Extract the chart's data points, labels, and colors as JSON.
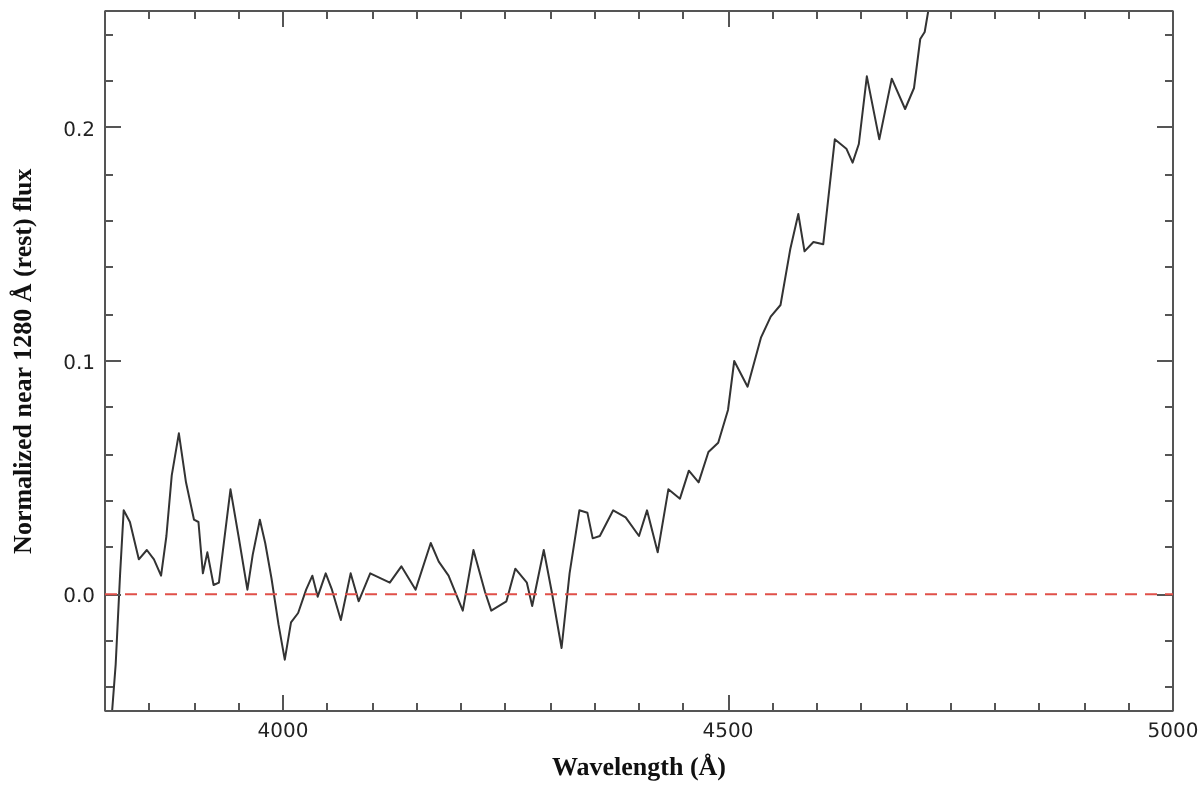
{
  "chart_data": {
    "type": "line",
    "xlabel": "Wavelength (Å)",
    "ylabel": "Normalized near 1280 Å (rest) flux",
    "xlim": [
      3800,
      5000
    ],
    "ylim": [
      -0.05,
      0.25
    ],
    "xticks": [
      4000,
      4500,
      5000
    ],
    "yticks": [
      {
        "value": 0,
        "label": "0.0"
      },
      {
        "value": 0.1,
        "label": "0.1"
      },
      {
        "value": 0.2,
        "label": "0.2"
      }
    ],
    "grid": false,
    "marker": "none",
    "line_style": "solid",
    "ref_lines": [
      {
        "axis": "y",
        "value": 0,
        "color": "#e0504a",
        "line_style": "dashed"
      }
    ],
    "series": [
      {
        "color": "#333333",
        "x": [
          3808,
          3812,
          3817,
          3821,
          3828,
          3838,
          3847,
          3855,
          3863,
          3869,
          3875,
          3883,
          3891,
          3900,
          3905,
          3910,
          3915,
          3922,
          3928,
          3941,
          3950,
          3960,
          3966,
          3974,
          3980,
          3987,
          3995,
          4002,
          4009,
          4017,
          4026,
          4033,
          4039,
          4048,
          4055,
          4065,
          4076,
          4085,
          4098,
          4120,
          4133,
          4149,
          4166,
          4175,
          4186,
          4202,
          4214,
          4227,
          4234,
          4251,
          4261,
          4274,
          4280,
          4293,
          4302,
          4313,
          4322,
          4333,
          4342,
          4348,
          4356,
          4371,
          4385,
          4400,
          4409,
          4421,
          4433,
          4446,
          4456,
          4467,
          4478,
          4489,
          4500,
          4507,
          4522,
          4537,
          4548,
          4559,
          4570,
          4579,
          4586,
          4596,
          4607,
          4620,
          4633,
          4640,
          4647,
          4656,
          4670,
          4684,
          4699,
          4709,
          4716,
          4721,
          4725
        ],
        "values": [
          -0.05,
          -0.03,
          0.009,
          0.036,
          0.031,
          0.015,
          0.019,
          0.015,
          0.008,
          0.025,
          0.051,
          0.069,
          0.048,
          0.032,
          0.031,
          0.009,
          0.018,
          0.004,
          0.005,
          0.045,
          0.025,
          0.002,
          0.017,
          0.032,
          0.022,
          0.007,
          -0.013,
          -0.028,
          -0.012,
          -0.008,
          0.002,
          0.008,
          -0.001,
          0.009,
          0.002,
          -0.011,
          0.009,
          -0.003,
          0.009,
          0.005,
          0.012,
          0.002,
          0.022,
          0.014,
          0.008,
          -0.007,
          0.019,
          0.001,
          -0.007,
          -0.003,
          0.011,
          0.005,
          -0.005,
          0.019,
          0.001,
          -0.023,
          0.009,
          0.036,
          0.035,
          0.024,
          0.025,
          0.036,
          0.033,
          0.025,
          0.036,
          0.018,
          0.045,
          0.041,
          0.053,
          0.048,
          0.061,
          0.065,
          0.079,
          0.1,
          0.089,
          0.11,
          0.119,
          0.124,
          0.148,
          0.163,
          0.147,
          0.151,
          0.15,
          0.195,
          0.191,
          0.185,
          0.193,
          0.222,
          0.195,
          0.221,
          0.208,
          0.217,
          0.238,
          0.241,
          0.25
        ]
      }
    ]
  }
}
